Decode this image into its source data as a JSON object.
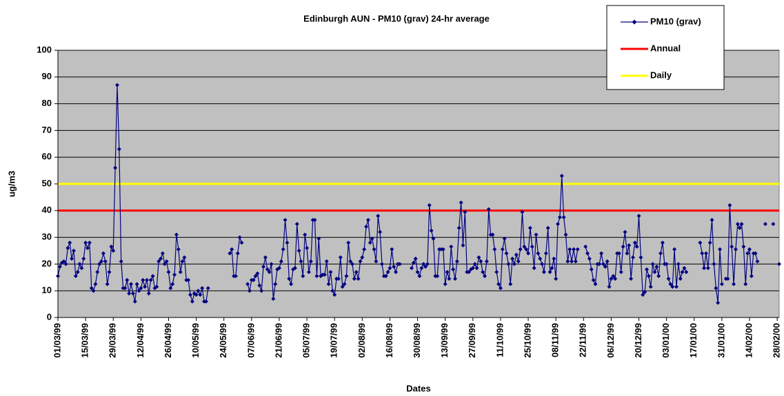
{
  "chart_data": {
    "type": "line",
    "title": "Edinburgh AUN - PM10 (grav) 24-hr average",
    "x_label": "Dates",
    "y_label": "ug/m3",
    "ylim": [
      0,
      100
    ],
    "yticks": [
      0,
      10,
      20,
      30,
      40,
      50,
      60,
      70,
      80,
      90,
      100
    ],
    "grid": true,
    "legend": "top-right",
    "categories": [
      "01/03/99",
      null,
      null,
      null,
      null,
      null,
      null,
      null,
      null,
      null,
      null,
      null,
      null,
      null,
      "15/03/99",
      null,
      null,
      null,
      null,
      null,
      null,
      null,
      null,
      null,
      null,
      null,
      null,
      null,
      "29/03/99",
      null,
      null,
      null,
      null,
      null,
      null,
      null,
      null,
      null,
      null,
      null,
      null,
      null,
      "12/04/99",
      null,
      null,
      null,
      null,
      null,
      null,
      null,
      null,
      null,
      null,
      null,
      null,
      null,
      "26/04/99",
      null,
      null,
      null,
      null,
      null,
      null,
      null,
      null,
      null,
      null,
      null,
      null,
      null,
      "10/05/99",
      null,
      null,
      null,
      null,
      null,
      null,
      null,
      null,
      null,
      null,
      null,
      null,
      null,
      "24/05/99",
      null,
      null,
      null,
      null,
      null,
      null,
      null,
      null,
      null,
      null,
      null,
      null,
      null,
      "07/06/99",
      null,
      null,
      null,
      null,
      null,
      null,
      null,
      null,
      null,
      null,
      null,
      null,
      null,
      "21/06/99",
      null,
      null,
      null,
      null,
      null,
      null,
      null,
      null,
      null,
      null,
      null,
      null,
      null,
      "05/07/99",
      null,
      null,
      null,
      null,
      null,
      null,
      null,
      null,
      null,
      null,
      null,
      null,
      null,
      "19/07/99",
      null,
      null,
      null,
      null,
      null,
      null,
      null,
      null,
      null,
      null,
      null,
      null,
      null,
      "02/08/99",
      null,
      null,
      null,
      null,
      null,
      null,
      null,
      null,
      null,
      null,
      null,
      null,
      null,
      "16/08/99",
      null,
      null,
      null,
      null,
      null,
      null,
      null,
      null,
      null,
      null,
      null,
      null,
      null,
      "30/08/99",
      null,
      null,
      null,
      null,
      null,
      null,
      null,
      null,
      null,
      null,
      null,
      null,
      null,
      "13/09/99",
      null,
      null,
      null,
      null,
      null,
      null,
      null,
      null,
      null,
      null,
      null,
      null,
      null,
      "27/09/99",
      null,
      null,
      null,
      null,
      null,
      null,
      null,
      null,
      null,
      null,
      null,
      null,
      null,
      "11/10/99",
      null,
      null,
      null,
      null,
      null,
      null,
      null,
      null,
      null,
      null,
      null,
      null,
      null,
      "25/10/99",
      null,
      null,
      null,
      null,
      null,
      null,
      null,
      null,
      null,
      null,
      null,
      null,
      null,
      "08/11/99",
      null,
      null,
      null,
      null,
      null,
      null,
      null,
      null,
      null,
      null,
      null,
      null,
      null,
      "22/11/99",
      null,
      null,
      null,
      null,
      null,
      null,
      null,
      null,
      null,
      null,
      null,
      null,
      null,
      "06/12/99",
      null,
      null,
      null,
      null,
      null,
      null,
      null,
      null,
      null,
      null,
      null,
      null,
      null,
      "20/12/99",
      null,
      null,
      null,
      null,
      null,
      null,
      null,
      null,
      null,
      null,
      null,
      null,
      null,
      "03/01/00",
      null,
      null,
      null,
      null,
      null,
      null,
      null,
      null,
      null,
      null,
      null,
      null,
      null,
      "17/01/00",
      null,
      null,
      null,
      null,
      null,
      null,
      null,
      null,
      null,
      null,
      null,
      null,
      null,
      "31/01/00",
      null,
      null,
      null,
      null,
      null,
      null,
      null,
      null,
      null,
      null,
      null,
      null,
      null,
      "14/02/00",
      null,
      null,
      null,
      null,
      null,
      null,
      null,
      null,
      null,
      null,
      null,
      null,
      null,
      "28/02/00",
      null
    ],
    "series": [
      {
        "name": "PM10 (grav)",
        "color": "#000080",
        "values": [
          15.5,
          19,
          20.5,
          21,
          20,
          26,
          28,
          22,
          25,
          15.5,
          17,
          20,
          18.5,
          22,
          28,
          26,
          28,
          11,
          10,
          12.5,
          17,
          20,
          21,
          24,
          21,
          12.5,
          17,
          26.5,
          25,
          56,
          87,
          63,
          21,
          11,
          11,
          14,
          9,
          12.5,
          9,
          6,
          12.5,
          10,
          11,
          14,
          11.5,
          14,
          9,
          14,
          15.5,
          11,
          11.5,
          21,
          22,
          24,
          20,
          21,
          17,
          11,
          12.5,
          16,
          31,
          25.5,
          17,
          21,
          22.5,
          14,
          14,
          8.5,
          6,
          9,
          8.5,
          10,
          8.5,
          11,
          6,
          6,
          11,
          null,
          null,
          null,
          null,
          null,
          null,
          null,
          null,
          null,
          null,
          24,
          25.5,
          15.5,
          15.5,
          24,
          30,
          28,
          null,
          null,
          12.5,
          10,
          14,
          14,
          15.5,
          16.5,
          12,
          10,
          19,
          22.5,
          18,
          17,
          20,
          7,
          12.5,
          18,
          18.5,
          21,
          25.5,
          36.5,
          28,
          14.5,
          12.5,
          18,
          18.5,
          35,
          25,
          21,
          15.5,
          31,
          26,
          17,
          21,
          36.5,
          36.5,
          15.5,
          29.5,
          15.5,
          16,
          16,
          21,
          12.5,
          17,
          10,
          8.5,
          14.5,
          14.5,
          22.5,
          11.5,
          12.5,
          15.5,
          28,
          21,
          20,
          14.5,
          17,
          14.5,
          21,
          22.5,
          25.5,
          34,
          36.5,
          28,
          29.5,
          25.5,
          21,
          38,
          32,
          20,
          15.5,
          15.5,
          17,
          18.5,
          25.5,
          19,
          17,
          20,
          20,
          null,
          null,
          null,
          null,
          null,
          18.5,
          20.5,
          22,
          17,
          15.5,
          18.5,
          20,
          19,
          20,
          42,
          32.5,
          29.5,
          15.5,
          15.5,
          25.5,
          25.5,
          25.5,
          12.5,
          17,
          14.5,
          26.5,
          18,
          14.5,
          21,
          33.5,
          43,
          27,
          39.5,
          17,
          17,
          18,
          18.5,
          20,
          18.5,
          22.5,
          21,
          17,
          15.5,
          21,
          40.5,
          31,
          31,
          25.5,
          17,
          12.5,
          11,
          25.5,
          29.5,
          24,
          20,
          12.5,
          22,
          20,
          23.5,
          21,
          25.5,
          39.5,
          26.5,
          25.5,
          24,
          33.5,
          26.5,
          18.5,
          31,
          24,
          22,
          20,
          17,
          24,
          33.5,
          17,
          18.5,
          22,
          14.5,
          35,
          37.5,
          53,
          37.5,
          31,
          21,
          25.5,
          21,
          25.5,
          21,
          25.5,
          null,
          null,
          null,
          26.5,
          24,
          22,
          18,
          14,
          12.5,
          20,
          20,
          24,
          20,
          19,
          21,
          11.5,
          14.5,
          15.5,
          14.5,
          24,
          24,
          17,
          26.5,
          32,
          24,
          27,
          14.5,
          22.5,
          28,
          26.5,
          38,
          22.5,
          8.5,
          9.5,
          18,
          15.5,
          11.5,
          20,
          17,
          19,
          15.5,
          24,
          28,
          20,
          20,
          14.5,
          12.5,
          11.5,
          25.5,
          11.5,
          20,
          14.5,
          17,
          18.5,
          17,
          null,
          null,
          null,
          null,
          null,
          null,
          28,
          24,
          18.5,
          24,
          18.5,
          28,
          36.5,
          20,
          11,
          5.5,
          25.5,
          12.5,
          null,
          14.5,
          14.5,
          42,
          26.5,
          12.5,
          25.5,
          35,
          33.5,
          35,
          26.5,
          12.5,
          24,
          25.5,
          15.5,
          24,
          24,
          21,
          null,
          null,
          null,
          35,
          null,
          null,
          null,
          35,
          null,
          null,
          20
        ]
      }
    ],
    "reference_lines": [
      {
        "name": "Annual",
        "value": 40,
        "color": "#ff0000"
      },
      {
        "name": "Daily",
        "value": 50,
        "color": "#ffff00"
      }
    ]
  }
}
